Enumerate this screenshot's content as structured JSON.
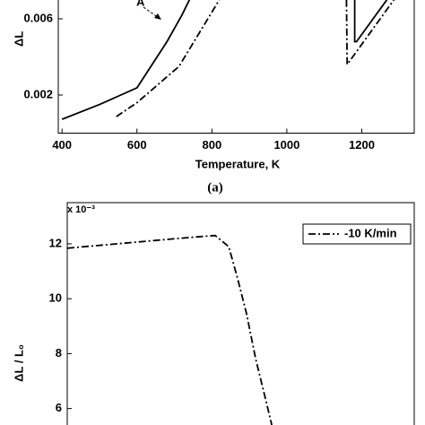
{
  "chart_data": [
    {
      "type": "line",
      "x_label": "Temperature, K",
      "y_label": "ΔL",
      "caption": "(a)",
      "annotation": "A",
      "xlim": [
        390,
        1340
      ],
      "xticks": [
        400,
        600,
        800,
        1000,
        1200
      ],
      "ylim": [
        0,
        0.008
      ],
      "yticks": [
        0.002,
        0.006
      ],
      "series": [
        {
          "color": "#000000",
          "line_style": "solid",
          "x": [
            400,
            500,
            600,
            680,
            720,
            740,
            null,
            1181,
            1181,
            1186,
            1267
          ],
          "values": [
            0.00073,
            0.0015,
            0.00238,
            0.0048,
            0.0062,
            0.007,
            null,
            0.007,
            0.0048,
            0.0048,
            0.007
          ]
        },
        {
          "color": "#000000",
          "line_style": "dashdot",
          "x": [
            545,
            600,
            712,
            820,
            null,
            1159,
            1161,
            1286
          ],
          "values": [
            0.00087,
            0.0016,
            0.0035,
            0.007,
            null,
            0.007,
            0.0036,
            0.007
          ]
        }
      ]
    },
    {
      "type": "line",
      "y_label": "ΔL / L₀",
      "y_multiplier": "x 10⁻³",
      "xlim": [
        390,
        1340
      ],
      "ylim": [
        5.4,
        13.5
      ],
      "yticks": [
        6,
        8,
        10,
        12
      ],
      "legend": "upper right",
      "series": [
        {
          "name": "-10 K/min",
          "color": "#000000",
          "line_style": "dashdot",
          "x": [
            390,
            697,
            770,
            795,
            832,
            856,
            881,
            906,
            930,
            950
          ],
          "values": [
            11.84,
            12.2,
            12.28,
            12.3,
            11.9,
            10.76,
            9.45,
            7.8,
            6.5,
            5.4
          ]
        }
      ]
    }
  ]
}
